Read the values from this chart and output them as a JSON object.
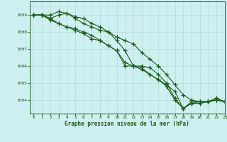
{
  "title": "Graphe pression niveau de la mer (hPa)",
  "bg_color": "#cff0f0",
  "grid_color": "#b8e0e0",
  "line_color": "#1a5c1a",
  "marker_color": "#1a5c1a",
  "xlim": [
    -0.5,
    23
  ],
  "ylim": [
    1003.2,
    1009.8
  ],
  "yticks": [
    1004,
    1005,
    1006,
    1007,
    1008,
    1009
  ],
  "xticks": [
    0,
    1,
    2,
    3,
    4,
    5,
    6,
    7,
    8,
    9,
    10,
    11,
    12,
    13,
    14,
    15,
    16,
    17,
    18,
    19,
    20,
    21,
    22,
    23
  ],
  "series": [
    [
      1009.0,
      1009.0,
      1009.0,
      1009.2,
      1009.1,
      1008.8,
      1008.5,
      1008.3,
      1008.1,
      1008.0,
      1007.5,
      1006.9,
      1006.0,
      1006.0,
      1005.9,
      1005.5,
      1005.0,
      1004.1,
      1003.5,
      1003.8,
      1003.8,
      1003.9,
      1004.0,
      1003.9
    ],
    [
      1009.0,
      1009.0,
      1008.7,
      1008.5,
      1008.3,
      1008.1,
      1007.9,
      1007.6,
      1007.5,
      1007.2,
      1006.9,
      1006.0,
      1006.0,
      1005.8,
      1005.5,
      1005.2,
      1004.8,
      1004.0,
      1003.5,
      1003.8,
      1003.9,
      1003.9,
      1004.0,
      1003.9
    ],
    [
      1009.0,
      1009.0,
      1008.8,
      1009.0,
      1009.1,
      1008.9,
      1008.8,
      1008.5,
      1008.3,
      1008.0,
      1007.7,
      1007.5,
      1007.3,
      1006.8,
      1006.4,
      1006.0,
      1005.5,
      1004.9,
      1004.3,
      1004.0,
      1003.9,
      1003.9,
      1004.1,
      1003.9
    ],
    [
      1009.0,
      1009.0,
      1008.8,
      1008.5,
      1008.3,
      1008.2,
      1008.0,
      1007.8,
      1007.5,
      1007.2,
      1006.9,
      1006.2,
      1006.0,
      1005.9,
      1005.5,
      1005.2,
      1004.9,
      1004.5,
      1003.5,
      1003.9,
      1003.9,
      1003.9,
      1004.1,
      1003.9
    ]
  ]
}
